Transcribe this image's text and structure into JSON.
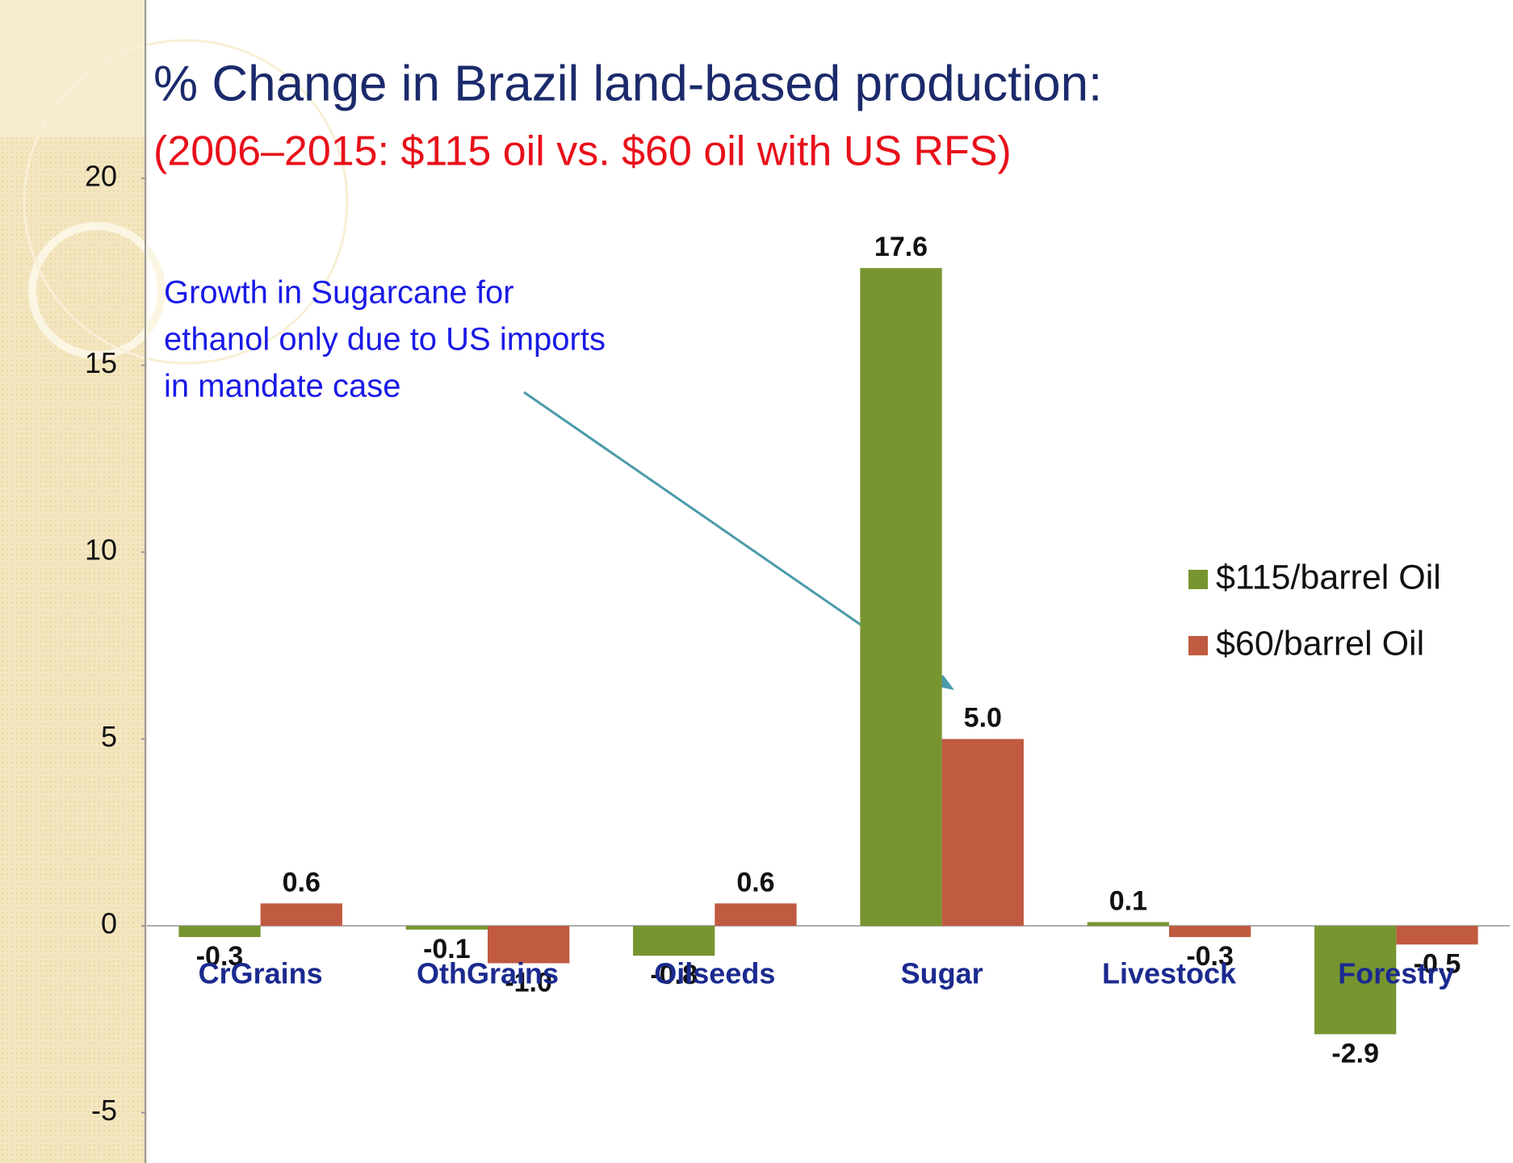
{
  "chart_data": {
    "type": "bar",
    "title": "% Change in Brazil land-based production:",
    "subtitle": "(2006–2015: $115 oil vs. $60 oil with US RFS)",
    "annotation": [
      "Growth in Sugarcane for",
      "ethanol only due to US imports",
      "in mandate case"
    ],
    "categories": [
      "CrGrains",
      "OthGrains",
      "Oilseeds",
      "Sugar",
      "Livestock",
      "Forestry"
    ],
    "series": [
      {
        "name": "$115/barrel Oil",
        "color": "#77952f",
        "values": [
          -0.3,
          -0.1,
          -0.8,
          17.6,
          0.1,
          -2.9
        ],
        "value_labels": [
          "-0.3",
          "-0.1",
          "-0.8",
          "17.6",
          "0.1",
          "-2.9"
        ]
      },
      {
        "name": "$60/barrel Oil",
        "color": "#c05a40",
        "values": [
          0.6,
          -1.0,
          0.6,
          5.0,
          -0.3,
          -0.5
        ],
        "value_labels": [
          "0.6",
          "-1.0",
          "0.6",
          "5.0",
          "-0.3",
          "-0.5"
        ]
      }
    ],
    "ylim": [
      -6,
      20
    ],
    "yticks": [
      -5,
      0,
      5,
      10,
      15,
      20
    ],
    "grid": false,
    "legend": "right"
  }
}
